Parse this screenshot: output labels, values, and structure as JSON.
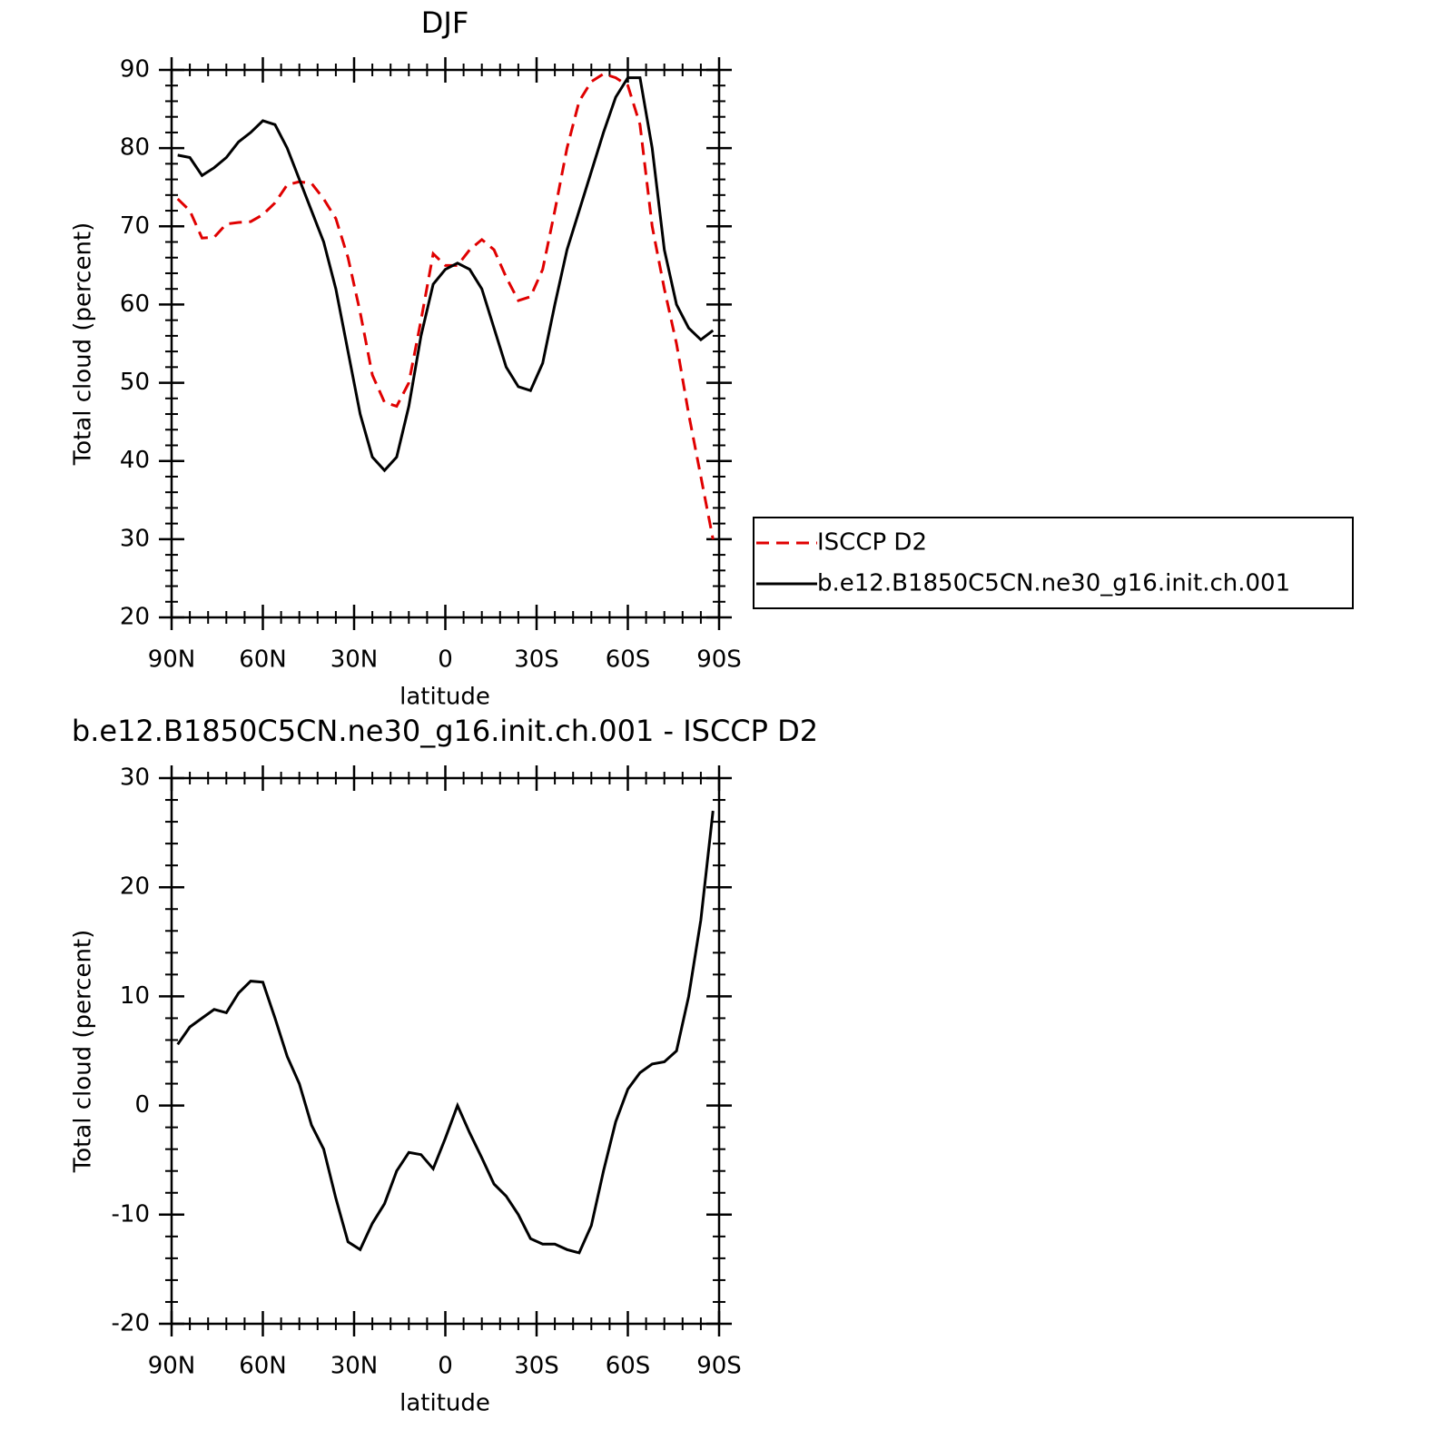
{
  "chart_data": [
    {
      "type": "line",
      "title": "DJF",
      "xlabel": "latitude",
      "ylabel": "Total cloud (percent)",
      "x": [
        88,
        84,
        80,
        76,
        72,
        68,
        64,
        60,
        56,
        52,
        48,
        44,
        40,
        36,
        32,
        28,
        24,
        20,
        16,
        12,
        8,
        4,
        0,
        -4,
        -8,
        -12,
        -16,
        -20,
        -24,
        -28,
        -32,
        -36,
        -40,
        -44,
        -48,
        -52,
        -56,
        -60,
        -64,
        -68,
        -72,
        -76,
        -80,
        -84,
        -88
      ],
      "series": [
        {
          "name": "ISCCP D2",
          "color": "#e00000",
          "dash": true,
          "values": [
            73.5,
            72,
            68.5,
            68.6,
            70.3,
            70.5,
            70.6,
            71.5,
            73,
            75.3,
            75.7,
            75.5,
            73.5,
            71,
            66,
            59,
            51,
            47.5,
            47,
            50,
            58,
            66.5,
            65,
            65,
            67,
            68.3,
            67,
            63.5,
            60.5,
            61,
            64.5,
            72,
            80,
            86,
            88.5,
            89.5,
            89,
            88,
            83,
            70,
            62,
            55,
            46,
            38,
            30
          ]
        },
        {
          "name": "b.e12.B1850C5CN.ne30_g16.init.ch.001",
          "color": "#000000",
          "dash": false,
          "values": [
            79.1,
            78.8,
            76.5,
            77.5,
            78.8,
            80.8,
            82,
            83.5,
            83,
            80,
            76,
            72,
            68,
            62,
            54,
            46,
            40.5,
            38.8,
            40.5,
            47,
            56,
            62.6,
            64.5,
            65.3,
            64.5,
            62,
            57,
            52,
            49.5,
            49,
            52.5,
            60,
            67,
            72,
            77,
            82,
            86.5,
            89,
            89,
            80,
            67,
            60,
            57,
            55.5,
            56.7
          ]
        }
      ],
      "xlim": [
        90,
        -90
      ],
      "xticks": [
        {
          "value": 90,
          "label": "90N"
        },
        {
          "value": 60,
          "label": "60N"
        },
        {
          "value": 30,
          "label": "30N"
        },
        0,
        {
          "value": -30,
          "label": "30S"
        },
        {
          "value": -60,
          "label": "60S"
        },
        {
          "value": -90,
          "label": "90S"
        }
      ],
      "ylim": [
        20,
        90
      ],
      "yticks": [
        20,
        30,
        40,
        50,
        60,
        70,
        80,
        90
      ],
      "legend": "right"
    },
    {
      "type": "line",
      "title": "b.e12.B1850C5CN.ne30_g16.init.ch.001 - ISCCP D2",
      "xlabel": "latitude",
      "ylabel": "Total cloud (percent)",
      "x": [
        88,
        84,
        80,
        76,
        72,
        68,
        64,
        60,
        56,
        52,
        48,
        44,
        40,
        36,
        32,
        28,
        24,
        20,
        16,
        12,
        8,
        4,
        0,
        -4,
        -8,
        -12,
        -16,
        -20,
        -24,
        -28,
        -32,
        -36,
        -40,
        -44,
        -48,
        -52,
        -56,
        -60,
        -64,
        -68,
        -72,
        -76,
        -80,
        -84,
        -88
      ],
      "series": [
        {
          "color": "#000000",
          "dash": false,
          "values": [
            5.6,
            7.2,
            8,
            8.8,
            8.5,
            10.3,
            11.4,
            11.3,
            8,
            4.5,
            2,
            -1.8,
            -4,
            -8.5,
            -12.5,
            -13.2,
            -10.8,
            -9,
            -6,
            -4.3,
            -4.5,
            -5.8,
            -3,
            0,
            -2.5,
            -4.8,
            -7.2,
            -8.3,
            -10,
            -12.2,
            -12.7,
            -12.7,
            -13.2,
            -13.5,
            -11,
            -6,
            -1.5,
            1.5,
            3,
            3.8,
            4,
            5,
            10,
            17,
            27
          ]
        }
      ],
      "xlim": [
        90,
        -90
      ],
      "xticks": [
        {
          "value": 90,
          "label": "90N"
        },
        {
          "value": 60,
          "label": "60N"
        },
        {
          "value": 30,
          "label": "30N"
        },
        0,
        {
          "value": -30,
          "label": "30S"
        },
        {
          "value": -60,
          "label": "60S"
        },
        {
          "value": -90,
          "label": "90S"
        }
      ],
      "ylim": [
        -20,
        30
      ],
      "yticks": [
        -20,
        -10,
        0,
        10,
        20,
        30
      ]
    }
  ]
}
